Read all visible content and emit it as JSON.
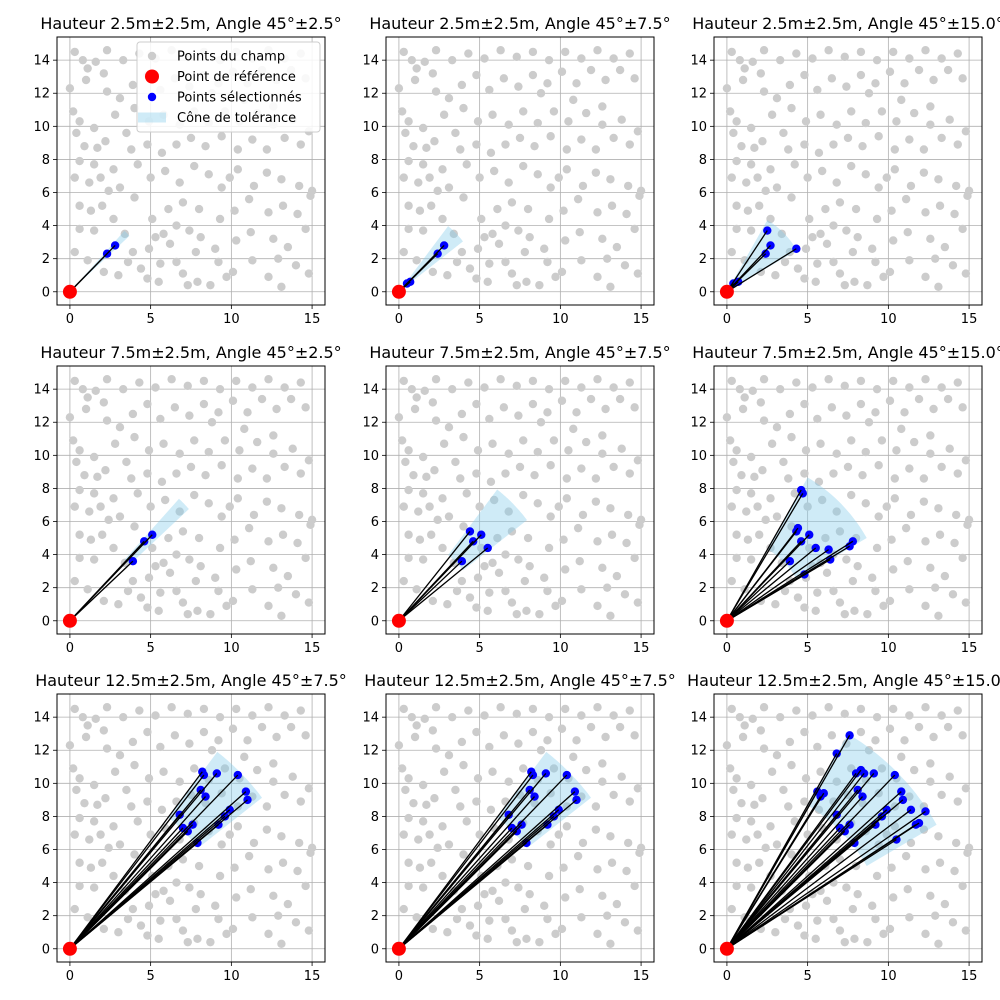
{
  "chart_data": {
    "type": "scatter",
    "grid": true,
    "xlim": [
      -0.8,
      15.8
    ],
    "ylim": [
      -0.8,
      15.4
    ],
    "x_ticks": [
      0,
      5,
      10,
      15
    ],
    "y_ticks": [
      0,
      2,
      4,
      6,
      8,
      10,
      12,
      14
    ],
    "reference_point": [
      0,
      0
    ],
    "colors": {
      "field": "#cccccc",
      "reference": "#ff0000",
      "selected": "#0000ff",
      "cone": "#87ceeb",
      "ray": "#000000"
    },
    "legend": {
      "placement": "top-right",
      "entries": [
        {
          "label": "Points du champ",
          "kind": "field"
        },
        {
          "label": "Point de référence",
          "kind": "reference"
        },
        {
          "label": "Points sélectionnés",
          "kind": "selected"
        },
        {
          "label": "Cône de tolérance",
          "kind": "cone"
        }
      ]
    },
    "field_points": [
      [
        0.3,
        14.5
      ],
      [
        0.8,
        14.0
      ],
      [
        1.1,
        13.5
      ],
      [
        1.6,
        13.9
      ],
      [
        2.1,
        13.2
      ],
      [
        0.0,
        12.3
      ],
      [
        1.0,
        12.8
      ],
      [
        2.3,
        12.1
      ],
      [
        0.2,
        10.9
      ],
      [
        0.6,
        10.3
      ],
      [
        1.5,
        9.9
      ],
      [
        2.8,
        10.7
      ],
      [
        0.4,
        9.6
      ],
      [
        0.9,
        8.8
      ],
      [
        1.7,
        8.7
      ],
      [
        0.6,
        7.9
      ],
      [
        1.5,
        7.7
      ],
      [
        2.7,
        7.4
      ],
      [
        0.3,
        6.9
      ],
      [
        1.2,
        6.6
      ],
      [
        2.4,
        6.1
      ],
      [
        3.1,
        6.3
      ],
      [
        0.6,
        5.2
      ],
      [
        1.3,
        4.9
      ],
      [
        2.0,
        5.2
      ],
      [
        2.7,
        4.4
      ],
      [
        0.6,
        3.8
      ],
      [
        1.5,
        3.7
      ],
      [
        0.3,
        2.4
      ],
      [
        1.1,
        1.9
      ],
      [
        2.1,
        1.2
      ],
      [
        3.0,
        1.0
      ],
      [
        3.6,
        1.8
      ],
      [
        4.4,
        1.4
      ],
      [
        4.8,
        0.8
      ],
      [
        5.5,
        0.6
      ],
      [
        3.9,
        2.4
      ],
      [
        4.9,
        2.6
      ],
      [
        5.6,
        1.7
      ],
      [
        6.6,
        1.8
      ],
      [
        7.0,
        1.1
      ],
      [
        7.9,
        0.6
      ],
      [
        8.7,
        0.4
      ],
      [
        9.2,
        1.8
      ],
      [
        9.7,
        0.9
      ],
      [
        10.1,
        1.2
      ],
      [
        11.3,
        1.9
      ],
      [
        12.3,
        0.9
      ],
      [
        13.1,
        0.3
      ],
      [
        14.0,
        1.6
      ],
      [
        14.8,
        1.1
      ],
      [
        13.5,
        2.7
      ],
      [
        12.6,
        3.2
      ],
      [
        11.2,
        3.6
      ],
      [
        10.3,
        3.1
      ],
      [
        9.0,
        2.6
      ],
      [
        8.1,
        3.3
      ],
      [
        7.4,
        3.7
      ],
      [
        6.6,
        4.0
      ],
      [
        5.8,
        3.5
      ],
      [
        5.1,
        4.4
      ],
      [
        6.1,
        5.0
      ],
      [
        7.0,
        5.4
      ],
      [
        8.0,
        5.0
      ],
      [
        9.3,
        4.4
      ],
      [
        10.2,
        4.9
      ],
      [
        11.1,
        5.6
      ],
      [
        12.3,
        4.8
      ],
      [
        13.2,
        5.2
      ],
      [
        14.1,
        4.7
      ],
      [
        14.9,
        5.8
      ],
      [
        14.2,
        6.4
      ],
      [
        13.1,
        6.8
      ],
      [
        12.2,
        7.2
      ],
      [
        11.4,
        6.4
      ],
      [
        10.4,
        7.4
      ],
      [
        9.4,
        6.3
      ],
      [
        8.6,
        7.1
      ],
      [
        7.7,
        7.6
      ],
      [
        6.8,
        6.6
      ],
      [
        5.9,
        7.3
      ],
      [
        5.0,
        6.9
      ],
      [
        4.2,
        7.7
      ],
      [
        3.8,
        8.6
      ],
      [
        4.8,
        8.9
      ],
      [
        5.7,
        8.4
      ],
      [
        6.6,
        8.9
      ],
      [
        7.5,
        9.3
      ],
      [
        8.4,
        8.8
      ],
      [
        9.4,
        9.4
      ],
      [
        10.4,
        8.6
      ],
      [
        11.3,
        9.2
      ],
      [
        12.2,
        8.6
      ],
      [
        13.3,
        9.3
      ],
      [
        14.3,
        8.9
      ],
      [
        14.8,
        9.7
      ],
      [
        13.8,
        10.4
      ],
      [
        12.6,
        10.1
      ],
      [
        11.6,
        10.8
      ],
      [
        10.5,
        10.3
      ],
      [
        9.6,
        10.9
      ],
      [
        8.6,
        10.2
      ],
      [
        7.7,
        10.9
      ],
      [
        6.8,
        10.1
      ],
      [
        5.8,
        10.7
      ],
      [
        4.9,
        10.3
      ],
      [
        4.0,
        11.1
      ],
      [
        3.1,
        11.7
      ],
      [
        3.9,
        12.5
      ],
      [
        4.8,
        13.1
      ],
      [
        5.6,
        12.2
      ],
      [
        6.5,
        12.9
      ],
      [
        7.4,
        12.4
      ],
      [
        8.3,
        13.1
      ],
      [
        9.2,
        12.6
      ],
      [
        10.1,
        13.3
      ],
      [
        11.0,
        12.6
      ],
      [
        11.9,
        13.4
      ],
      [
        12.8,
        12.8
      ],
      [
        13.7,
        13.4
      ],
      [
        14.6,
        12.9
      ],
      [
        14.3,
        14.4
      ],
      [
        13.3,
        14.1
      ],
      [
        12.3,
        14.6
      ],
      [
        11.3,
        14.1
      ],
      [
        10.3,
        14.5
      ],
      [
        9.3,
        14.0
      ],
      [
        8.3,
        14.5
      ],
      [
        7.3,
        14.2
      ],
      [
        6.3,
        14.6
      ],
      [
        5.3,
        14.1
      ],
      [
        4.3,
        14.4
      ],
      [
        3.3,
        14.0
      ],
      [
        2.3,
        14.6
      ],
      [
        15.0,
        6.1
      ],
      [
        14.6,
        3.8
      ],
      [
        12.9,
        2.0
      ],
      [
        7.8,
        2.4
      ],
      [
        6.2,
        2.9
      ],
      [
        3.4,
        3.5
      ],
      [
        8.8,
        12.0
      ],
      [
        10.8,
        11.6
      ],
      [
        12.6,
        11.2
      ],
      [
        3.5,
        9.6
      ],
      [
        2.2,
        9.1
      ],
      [
        1.9,
        6.9
      ],
      [
        4.0,
        5.7
      ],
      [
        9.9,
        6.9
      ],
      [
        7.3,
        0.4
      ],
      [
        5.3,
        3.3
      ]
    ],
    "panels": [
      {
        "title": "Hauteur 2.5m±2.5m, Angle 45°±2.5°",
        "cone": {
          "r_max": 5.0,
          "angle_min": 42.5,
          "angle_max": 47.5
        },
        "legend": true,
        "selected": [
          [
            2.3,
            2.3
          ],
          [
            2.8,
            2.8
          ]
        ]
      },
      {
        "title": "Hauteur 2.5m±2.5m, Angle 45°±7.5°",
        "cone": {
          "r_max": 5.0,
          "angle_min": 37.5,
          "angle_max": 52.5
        },
        "legend": false,
        "selected": [
          [
            0.5,
            0.5
          ],
          [
            0.7,
            0.6
          ],
          [
            2.4,
            2.3
          ],
          [
            2.8,
            2.8
          ]
        ]
      },
      {
        "title": "Hauteur 2.5m±2.5m, Angle 45°±15.0°",
        "cone": {
          "r_max": 5.0,
          "angle_min": 30.0,
          "angle_max": 60.0
        },
        "legend": false,
        "selected": [
          [
            0.4,
            0.5
          ],
          [
            0.7,
            0.6
          ],
          [
            2.4,
            2.3
          ],
          [
            2.7,
            2.8
          ],
          [
            2.5,
            3.7
          ],
          [
            4.3,
            2.6
          ]
        ]
      },
      {
        "title": "Hauteur 7.5m±2.5m, Angle 45°±2.5°",
        "cone": {
          "r_max": 10.0,
          "angle_min": 42.5,
          "angle_max": 47.5
        },
        "legend": false,
        "selected": [
          [
            3.9,
            3.6
          ],
          [
            4.6,
            4.8
          ],
          [
            5.1,
            5.2
          ]
        ]
      },
      {
        "title": "Hauteur 7.5m±2.5m, Angle 45°±7.5°",
        "cone": {
          "r_max": 10.0,
          "angle_min": 37.5,
          "angle_max": 52.5
        },
        "legend": false,
        "selected": [
          [
            3.9,
            3.6
          ],
          [
            4.4,
            5.4
          ],
          [
            4.6,
            4.8
          ],
          [
            5.1,
            5.2
          ],
          [
            5.5,
            4.4
          ]
        ]
      },
      {
        "title": "Hauteur 7.5m±2.5m, Angle 45°±15.0°",
        "cone": {
          "r_max": 10.0,
          "angle_min": 30.0,
          "angle_max": 60.0
        },
        "legend": false,
        "selected": [
          [
            4.6,
            7.9
          ],
          [
            4.7,
            7.7
          ],
          [
            4.4,
            5.6
          ],
          [
            4.3,
            5.4
          ],
          [
            3.9,
            3.6
          ],
          [
            4.6,
            4.8
          ],
          [
            5.1,
            5.2
          ],
          [
            5.5,
            4.4
          ],
          [
            4.8,
            2.8
          ],
          [
            6.3,
            4.3
          ],
          [
            6.4,
            3.7
          ],
          [
            7.6,
            4.5
          ],
          [
            7.8,
            4.8
          ]
        ]
      },
      {
        "title": "Hauteur 12.5m±2.5m, Angle 45°±7.5°",
        "cone": {
          "r_max": 15.0,
          "angle_min": 37.5,
          "angle_max": 52.5
        },
        "legend": false,
        "selected": [
          [
            8.2,
            10.7
          ],
          [
            8.3,
            10.5
          ],
          [
            9.1,
            10.6
          ],
          [
            10.4,
            10.5
          ],
          [
            8.1,
            9.6
          ],
          [
            8.4,
            9.2
          ],
          [
            6.8,
            8.1
          ],
          [
            10.9,
            9.5
          ],
          [
            11.0,
            9.0
          ],
          [
            9.9,
            8.4
          ],
          [
            9.6,
            8.0
          ],
          [
            9.2,
            7.5
          ],
          [
            7.6,
            7.5
          ],
          [
            7.3,
            7.1
          ],
          [
            7.0,
            7.3
          ],
          [
            7.9,
            6.4
          ]
        ]
      },
      {
        "title": "Hauteur 12.5m±2.5m, Angle 45°±7.5°",
        "cone": {
          "r_max": 15.0,
          "angle_min": 37.5,
          "angle_max": 52.5
        },
        "legend": false,
        "selected": [
          [
            8.2,
            10.7
          ],
          [
            8.3,
            10.5
          ],
          [
            9.1,
            10.6
          ],
          [
            10.4,
            10.5
          ],
          [
            8.1,
            9.6
          ],
          [
            8.4,
            9.2
          ],
          [
            6.8,
            8.1
          ],
          [
            10.9,
            9.5
          ],
          [
            11.0,
            9.0
          ],
          [
            9.9,
            8.4
          ],
          [
            9.6,
            8.0
          ],
          [
            9.2,
            7.5
          ],
          [
            7.6,
            7.5
          ],
          [
            7.3,
            7.1
          ],
          [
            7.0,
            7.3
          ],
          [
            7.9,
            6.4
          ]
        ]
      },
      {
        "title": "Hauteur 12.5m±2.5m, Angle 45°±15.0°",
        "cone": {
          "r_max": 15.0,
          "angle_min": 30.0,
          "angle_max": 60.0
        },
        "legend": false,
        "selected": [
          [
            7.6,
            12.9
          ],
          [
            6.8,
            11.8
          ],
          [
            8.0,
            10.6
          ],
          [
            8.3,
            10.8
          ],
          [
            8.5,
            10.6
          ],
          [
            9.1,
            10.6
          ],
          [
            10.4,
            10.5
          ],
          [
            5.6,
            9.5
          ],
          [
            5.8,
            9.2
          ],
          [
            6.0,
            9.4
          ],
          [
            8.1,
            9.6
          ],
          [
            8.4,
            9.2
          ],
          [
            10.8,
            9.5
          ],
          [
            10.9,
            9.0
          ],
          [
            6.8,
            8.1
          ],
          [
            9.9,
            8.4
          ],
          [
            9.6,
            8.0
          ],
          [
            11.4,
            8.4
          ],
          [
            12.3,
            8.3
          ],
          [
            9.2,
            7.5
          ],
          [
            7.6,
            7.5
          ],
          [
            11.7,
            7.5
          ],
          [
            11.9,
            7.6
          ],
          [
            7.3,
            7.1
          ],
          [
            7.0,
            7.3
          ],
          [
            7.9,
            6.4
          ],
          [
            10.5,
            6.6
          ]
        ]
      }
    ]
  }
}
